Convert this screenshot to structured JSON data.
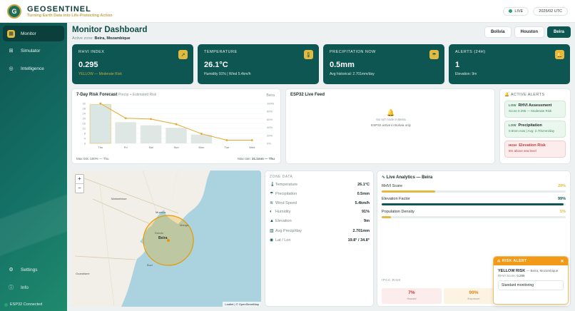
{
  "app": {
    "name": "GEOSENTINEL",
    "tagline": "Turning Earth Data into Life-Protecting Action",
    "logo_text": "G"
  },
  "topbar": {
    "live": "LIVE",
    "time": "2025/02 UTC"
  },
  "sidebar": {
    "items": [
      {
        "label": "Monitor",
        "icon": "grid-icon"
      },
      {
        "label": "Simulator",
        "icon": "sliders-icon"
      },
      {
        "label": "Intelligence",
        "icon": "brain-icon"
      }
    ],
    "bottom": [
      {
        "label": "Settings",
        "icon": "gear-icon"
      },
      {
        "label": "Info",
        "icon": "info-icon"
      }
    ],
    "status": "ESP32 Connected"
  },
  "header": {
    "title": "Monitor Dashboard",
    "zone_label": "Active zone:",
    "zone_value": "Beira, Mozambique"
  },
  "locations": [
    "Bolivia",
    "Houston",
    "Beira"
  ],
  "selected_location": "Beira",
  "cards": [
    {
      "label": "RHVI INDEX",
      "value": "0.295",
      "sub": "YELLOW — Moderate Risk",
      "icon": "trend-icon"
    },
    {
      "label": "TEMPERATURE",
      "value": "26.1°C",
      "sub": "Humidity 91% | Wind 5.4km/h",
      "icon": "thermometer-icon"
    },
    {
      "label": "PRECIPITATION NOW",
      "value": "0.5mm",
      "sub": "Avg historical: 2.701mm/day",
      "icon": "rain-icon"
    },
    {
      "label": "ALERTS (24H)",
      "value": "1",
      "sub": "Elevation: 9m",
      "icon": "bell-icon"
    }
  ],
  "forecast": {
    "title": "7-Day Risk Forecast",
    "subtitle": "Precip + Estimated Risk",
    "location": "Beira",
    "footer_left_label": "Max risk:",
    "footer_left": "100% — Thu",
    "footer_right_label": "Max rain:",
    "footer_right": "31.1mm — Thu"
  },
  "chart_data": {
    "type": "bar",
    "categories": [
      "Thu",
      "Fri",
      "Sat",
      "Sun",
      "Mon",
      "Tue",
      "Wed"
    ],
    "series": [
      {
        "values": [
          31.1,
          17,
          14.5,
          12.5,
          7,
          0,
          0
        ]
      },
      {
        "values": [
          100,
          63,
          61,
          48,
          24,
          8,
          8
        ]
      }
    ],
    "ylim_left": [
      0,
      32
    ],
    "ylim_right": [
      0,
      100
    ],
    "yticks_left": [
      "32",
      "28",
      "24",
      "20",
      "16",
      "12",
      "8",
      "4",
      "0"
    ],
    "yticks_right": [
      "100%",
      "80%",
      "60%",
      "40%",
      "20%",
      "0%"
    ]
  },
  "feed": {
    "title": "ESP32 Live Feed",
    "empty1": "No IoT node in Beira",
    "empty2": "ESP32 active in Bolivia only"
  },
  "alerts": {
    "title": "ACTIVE ALERTS",
    "items": [
      {
        "level": "LOW",
        "title": "RHVI Assessment",
        "detail": "Score 0.295 — Moderate Risk"
      },
      {
        "level": "LOW",
        "title": "Precipitation",
        "detail": "0.5mm now | Avg: 2.701mm/day"
      },
      {
        "level": "HIGH",
        "title": "Elevation Risk",
        "detail": "9m above sea level"
      }
    ]
  },
  "map": {
    "labels": [
      "Muanza",
      "Mafambisse",
      "Dondo",
      "Beira",
      "Manga",
      "Buzi",
      "Guaraliane"
    ],
    "attribution": "Leaflet | © OpenStreetMap",
    "zoom_in": "+",
    "zoom_out": "−"
  },
  "zone_data": {
    "title": "ZONE DATA",
    "rows": [
      {
        "label": "Temperature",
        "value": "26.1°C",
        "icon": "thermometer-icon"
      },
      {
        "label": "Precipitation",
        "value": "0.5mm",
        "icon": "rain-icon"
      },
      {
        "label": "Wind Speed",
        "value": "5.4km/h",
        "icon": "wind-icon"
      },
      {
        "label": "Humidity",
        "value": "91%",
        "icon": "droplet-icon"
      },
      {
        "label": "Elevation",
        "value": "9m",
        "icon": "mountain-icon"
      },
      {
        "label": "Avg Precip/day",
        "value": "2.701mm",
        "icon": "chart-icon"
      },
      {
        "label": "Lat / Lon",
        "value": "19.8° / 34.8°",
        "icon": "pin-icon"
      }
    ]
  },
  "analytics": {
    "title": "Live Analytics — Beira",
    "rows": [
      {
        "label": "RHVI Score",
        "pct": "29%",
        "value": 0.29,
        "color": "#e3b93f"
      },
      {
        "label": "Elevation Factor",
        "pct": "99%",
        "value": 0.99,
        "color": "#0e5651"
      },
      {
        "label": "Population Density",
        "pct": "5%",
        "value": 0.05,
        "color": "#e3b93f"
      }
    ],
    "ipcc_title": "IPCC RISK",
    "ipcc": [
      {
        "value": "7%",
        "label": "Hazard"
      },
      {
        "value": "99%",
        "label": "Exposure"
      }
    ]
  },
  "toast": {
    "header": "RISK ALERT",
    "level": "YELLOW RISK",
    "place": "— Beira, Mozambique",
    "score_label": "RHVI Score:",
    "score": "0.295",
    "button": "Standard monitoring"
  }
}
